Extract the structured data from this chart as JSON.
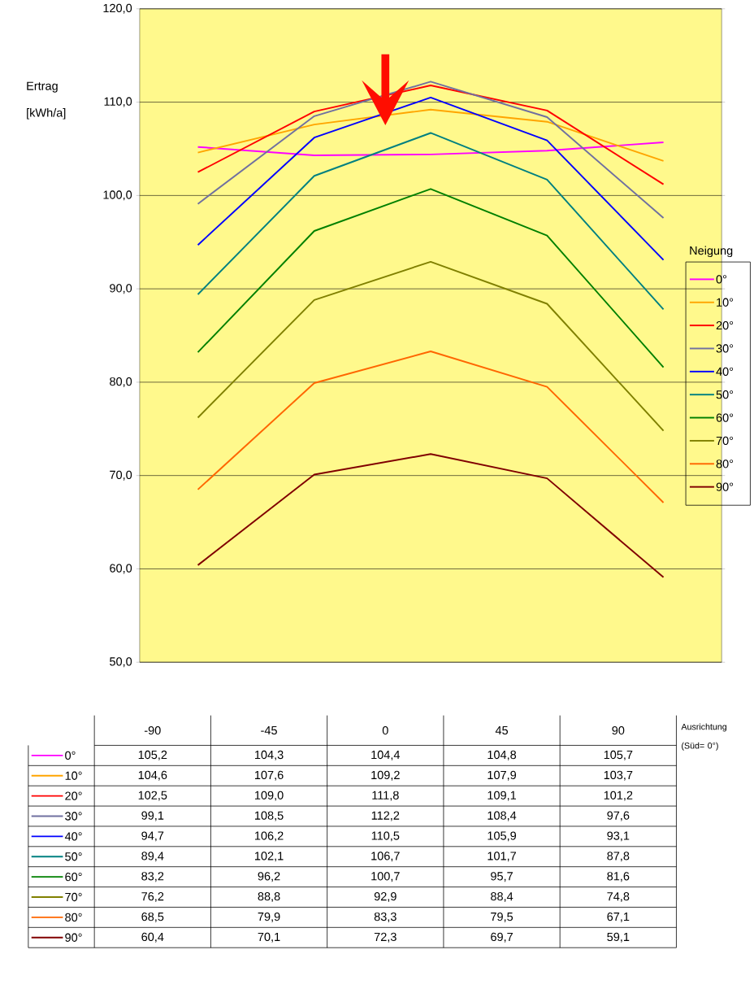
{
  "chart_data": {
    "type": "line",
    "ylabel": "Ertrag [kWh/a]",
    "xlabel": "Ausrichtung (Süd= 0°)",
    "legend_title": "Neigung",
    "categories": [
      "-90",
      "-45",
      "0",
      "45",
      "90"
    ],
    "ylim": [
      50,
      120
    ],
    "yticks": [
      {
        "value": 50,
        "label": "50,0"
      },
      {
        "value": 60,
        "label": "60,0"
      },
      {
        "value": 70,
        "label": "70,0"
      },
      {
        "value": 80,
        "label": "80,0"
      },
      {
        "value": 90,
        "label": "90,0"
      },
      {
        "value": 100,
        "label": "100,0"
      },
      {
        "value": 110,
        "label": "110,0"
      },
      {
        "value": 120,
        "label": "120,0"
      }
    ],
    "grid": "y",
    "legend": "right",
    "series": [
      {
        "name": "0°",
        "color": "#ff00ff",
        "values": [
          105.2,
          104.3,
          104.4,
          104.8,
          105.7
        ],
        "value_labels": [
          "105,2",
          "104,3",
          "104,4",
          "104,8",
          "105,7"
        ]
      },
      {
        "name": "10°",
        "color": "#ffa500",
        "values": [
          104.6,
          107.6,
          109.2,
          107.9,
          103.7
        ],
        "value_labels": [
          "104,6",
          "107,6",
          "109,2",
          "107,9",
          "103,7"
        ]
      },
      {
        "name": "20°",
        "color": "#ff0000",
        "values": [
          102.5,
          109.0,
          111.8,
          109.1,
          101.2
        ],
        "value_labels": [
          "102,5",
          "109,0",
          "111,8",
          "109,1",
          "101,2"
        ]
      },
      {
        "name": "30°",
        "color": "#7070a0",
        "values": [
          99.1,
          108.5,
          112.2,
          108.4,
          97.6
        ],
        "value_labels": [
          "99,1",
          "108,5",
          "112,2",
          "108,4",
          "97,6"
        ]
      },
      {
        "name": "40°",
        "color": "#0000ff",
        "values": [
          94.7,
          106.2,
          110.5,
          105.9,
          93.1
        ],
        "value_labels": [
          "94,7",
          "106,2",
          "110,5",
          "105,9",
          "93,1"
        ]
      },
      {
        "name": "50°",
        "color": "#008080",
        "values": [
          89.4,
          102.1,
          106.7,
          101.7,
          87.8
        ],
        "value_labels": [
          "89,4",
          "102,1",
          "106,7",
          "101,7",
          "87,8"
        ]
      },
      {
        "name": "60°",
        "color": "#008000",
        "values": [
          83.2,
          96.2,
          100.7,
          95.7,
          81.6
        ],
        "value_labels": [
          "83,2",
          "96,2",
          "100,7",
          "95,7",
          "81,6"
        ]
      },
      {
        "name": "70°",
        "color": "#808000",
        "values": [
          76.2,
          88.8,
          92.9,
          88.4,
          74.8
        ],
        "value_labels": [
          "76,2",
          "88,8",
          "92,9",
          "88,4",
          "74,8"
        ]
      },
      {
        "name": "80°",
        "color": "#ff6600",
        "values": [
          68.5,
          79.9,
          83.3,
          79.5,
          67.1
        ],
        "value_labels": [
          "68,5",
          "79,9",
          "83,3",
          "79,5",
          "67,1"
        ]
      },
      {
        "name": "90°",
        "color": "#800000",
        "values": [
          60.4,
          70.1,
          72.3,
          69.7,
          59.1
        ],
        "value_labels": [
          "60,4",
          "70,1",
          "72,3",
          "69,7",
          "59,1"
        ]
      }
    ]
  }
}
